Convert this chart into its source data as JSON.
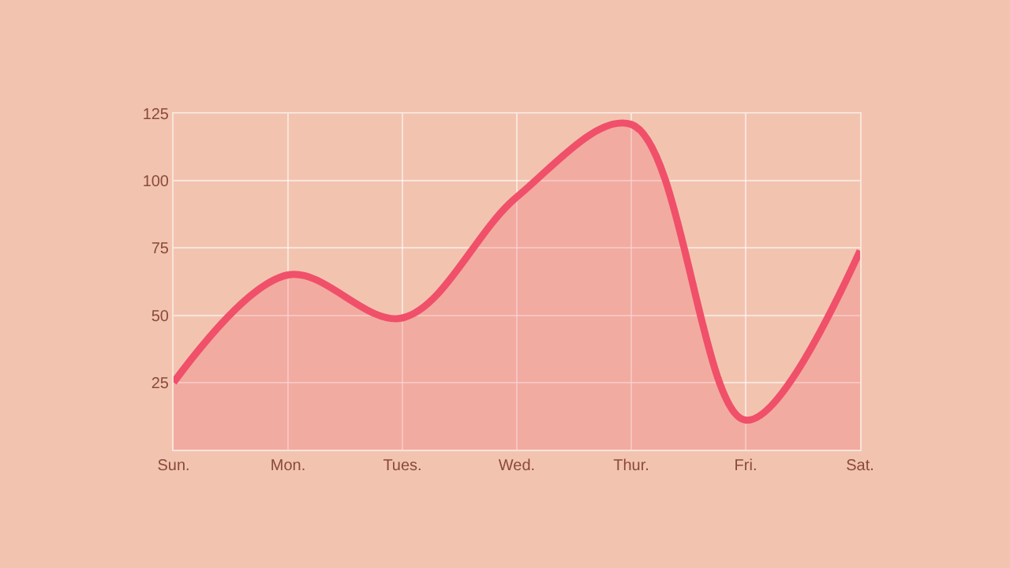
{
  "chart_data": {
    "type": "area",
    "categories": [
      "Sun.",
      "Mon.",
      "Tues.",
      "Wed.",
      "Thur.",
      "Fri.",
      "Sat."
    ],
    "series": [
      {
        "color": "#f0506a",
        "values": [
          25,
          65,
          49,
          94,
          121,
          11,
          74
        ]
      }
    ],
    "ylim": [
      0,
      125
    ],
    "yticks": [
      25,
      50,
      75,
      100,
      125
    ],
    "grid": true,
    "marker": "none",
    "line_style": "solid"
  }
}
